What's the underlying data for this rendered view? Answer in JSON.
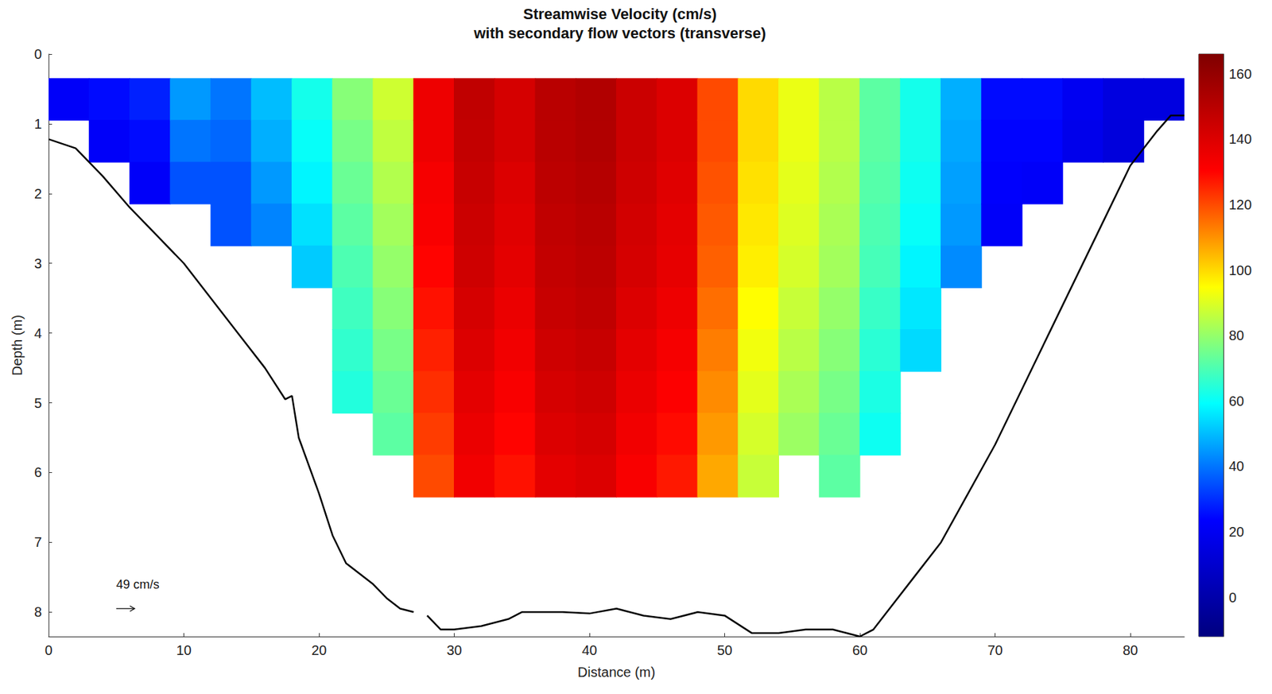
{
  "chart_data": {
    "type": "heatmap",
    "title": "Streamwise Velocity (cm/s)",
    "subtitle": "with secondary flow vectors (transverse)",
    "xlabel": "Distance (m)",
    "ylabel": "Depth (m)",
    "xlim": [
      0,
      84
    ],
    "xticks": [
      0,
      10,
      20,
      30,
      40,
      50,
      60,
      70,
      80
    ],
    "ylim": [
      0,
      8.35
    ],
    "yticks": [
      0,
      1,
      2,
      3,
      4,
      5,
      6,
      7,
      8
    ],
    "grid": false,
    "heatmap": {
      "x": [
        1.5,
        4.5,
        7.5,
        10.5,
        13.5,
        16.5,
        19.5,
        22.5,
        25.5,
        28.5,
        31.5,
        34.5,
        37.5,
        40.5,
        43.5,
        46.5,
        49.5,
        52.5,
        55.5,
        58.5,
        61.5,
        64.5,
        67.5,
        70.5,
        73.5,
        76.5,
        79.5,
        82.5
      ],
      "depth": [
        0.65,
        1.25,
        1.85,
        2.45,
        3.05,
        3.65,
        4.25,
        4.85,
        5.45,
        6.05
      ],
      "values": [
        [
          22,
          null,
          null,
          null,
          null,
          null,
          null,
          null,
          null,
          null
        ],
        [
          25,
          22,
          null,
          null,
          null,
          null,
          null,
          null,
          null,
          null
        ],
        [
          28,
          25,
          22,
          null,
          null,
          null,
          null,
          null,
          null,
          null
        ],
        [
          45,
          40,
          35,
          null,
          null,
          null,
          null,
          null,
          null,
          null
        ],
        [
          40,
          38,
          35,
          35,
          null,
          null,
          null,
          null,
          null,
          null
        ],
        [
          50,
          48,
          45,
          42,
          null,
          null,
          null,
          null,
          null,
          null
        ],
        [
          62,
          60,
          58,
          55,
          52,
          null,
          null,
          null,
          null,
          null
        ],
        [
          78,
          76,
          74,
          72,
          70,
          68,
          66,
          64,
          null,
          null
        ],
        [
          88,
          86,
          84,
          82,
          80,
          78,
          76,
          74,
          72,
          null
        ],
        [
          135,
          135,
          133,
          132,
          130,
          128,
          126,
          124,
          122,
          120
        ],
        [
          148,
          147,
          146,
          145,
          144,
          142,
          140,
          138,
          136,
          134
        ],
        [
          142,
          142,
          140,
          139,
          138,
          136,
          134,
          132,
          130,
          128
        ],
        [
          150,
          150,
          149,
          148,
          147,
          146,
          144,
          142,
          140,
          138
        ],
        [
          152,
          152,
          151,
          150,
          149,
          148,
          146,
          144,
          142,
          140
        ],
        [
          145,
          145,
          144,
          143,
          142,
          140,
          138,
          136,
          134,
          132
        ],
        [
          140,
          140,
          139,
          138,
          137,
          135,
          133,
          131,
          129,
          127
        ],
        [
          120,
          120,
          119,
          118,
          117,
          115,
          113,
          111,
          109,
          107
        ],
        [
          100,
          100,
          99,
          98,
          97,
          95,
          93,
          91,
          89,
          87
        ],
        [
          92,
          92,
          91,
          90,
          89,
          87,
          85,
          83,
          81,
          null
        ],
        [
          85,
          85,
          84,
          83,
          82,
          80,
          78,
          76,
          74,
          72
        ],
        [
          72,
          72,
          71,
          70,
          69,
          67,
          65,
          63,
          61,
          null
        ],
        [
          62,
          62,
          61,
          60,
          58,
          56,
          54,
          null,
          null,
          null
        ],
        [
          48,
          47,
          46,
          45,
          43,
          null,
          null,
          null,
          null,
          null
        ],
        [
          25,
          24,
          23,
          22,
          null,
          null,
          null,
          null,
          null,
          null
        ],
        [
          25,
          24,
          22,
          null,
          null,
          null,
          null,
          null,
          null,
          null
        ],
        [
          20,
          18,
          null,
          null,
          null,
          null,
          null,
          null,
          null,
          null
        ],
        [
          15,
          14,
          null,
          null,
          null,
          null,
          null,
          null,
          null,
          null
        ],
        [
          15,
          null,
          null,
          null,
          null,
          null,
          null,
          null,
          null,
          null
        ]
      ]
    },
    "colorbar": {
      "lim": [
        -12,
        166
      ],
      "ticks": [
        0,
        20,
        40,
        60,
        80,
        100,
        120,
        140,
        160
      ]
    },
    "bed": {
      "x": [
        0,
        2,
        4,
        6,
        8,
        10,
        12,
        14,
        16,
        17.5,
        18,
        18.5,
        20,
        21,
        22,
        24,
        25,
        26,
        27,
        27.5,
        28,
        29,
        30,
        32,
        34,
        35,
        38,
        40,
        42,
        44,
        46,
        48,
        50,
        52,
        54,
        56,
        58,
        60,
        61,
        62,
        64,
        66,
        68,
        70,
        72,
        74,
        76,
        78,
        80,
        82,
        83,
        84
      ],
      "depth": [
        1.22,
        1.35,
        1.75,
        2.2,
        2.6,
        3.0,
        3.5,
        4.0,
        4.5,
        4.95,
        4.9,
        5.5,
        6.3,
        6.9,
        7.3,
        7.6,
        7.8,
        7.95,
        8.0,
        null,
        8.05,
        8.25,
        8.25,
        8.2,
        8.1,
        8.0,
        8.0,
        8.02,
        7.95,
        8.05,
        8.1,
        8.0,
        8.05,
        8.3,
        8.3,
        8.25,
        8.25,
        8.35,
        8.25,
        8.0,
        7.5,
        7.0,
        6.3,
        5.6,
        4.8,
        4.0,
        3.2,
        2.4,
        1.6,
        1.1,
        0.88,
        0.88
      ],
      "color": "#000000"
    },
    "reference_vector": {
      "value": 49,
      "label": "49 cm/s"
    }
  }
}
